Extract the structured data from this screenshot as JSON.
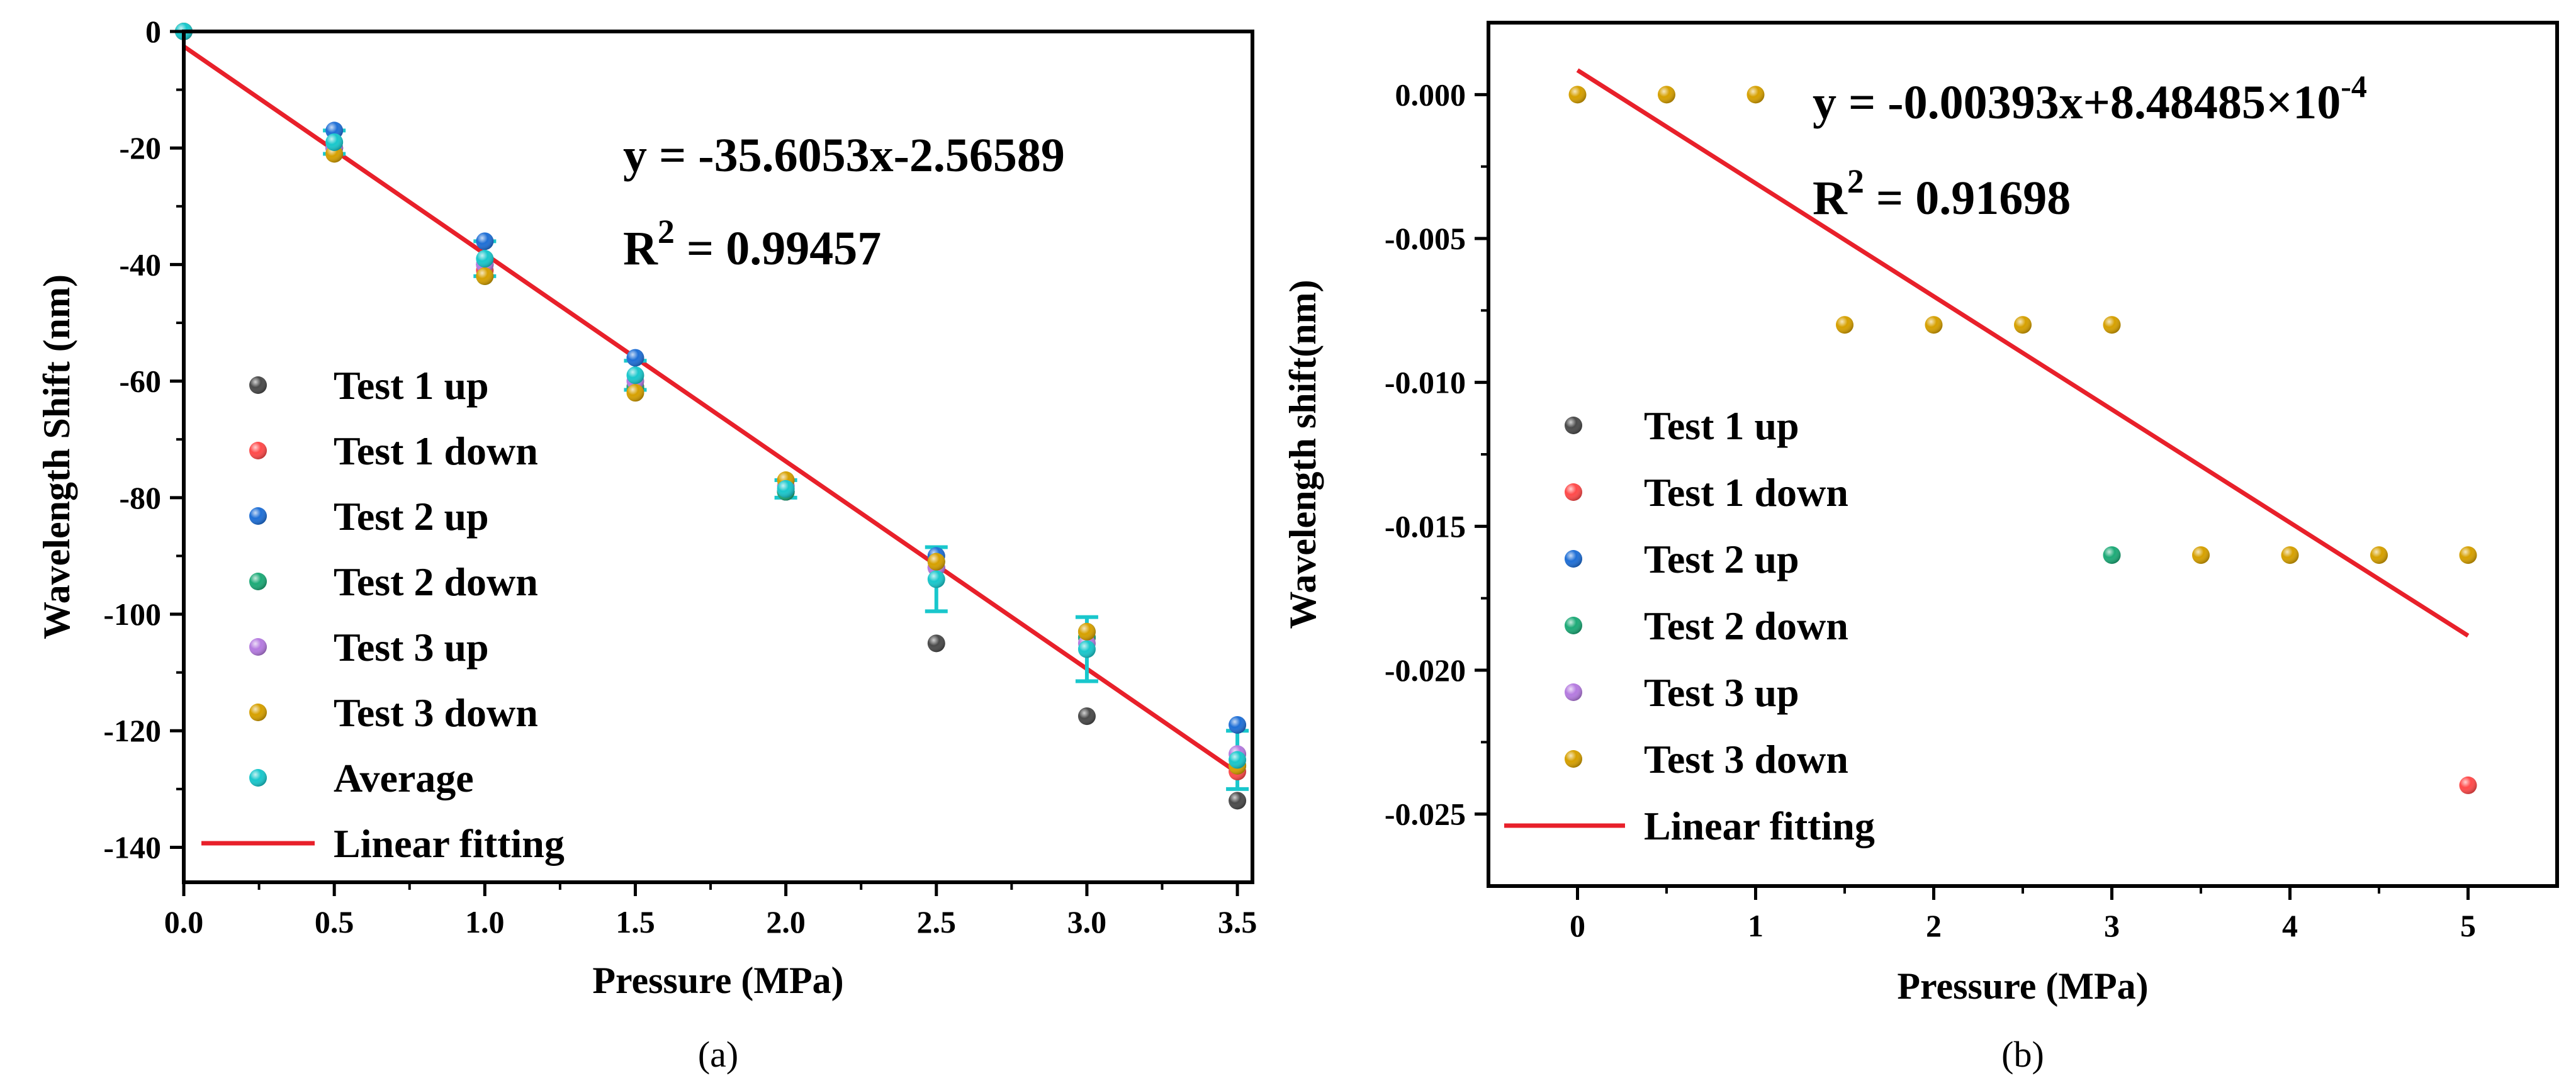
{
  "chart_data": [
    {
      "type": "scatter",
      "panel_label": "(a)",
      "xlabel": "Pressure (MPa)",
      "ylabel": "Wavelength Shift (nm)",
      "xlim": [
        0,
        3.55
      ],
      "ylim": [
        -146,
        0
      ],
      "xticks": [
        0,
        0.5,
        1,
        1.5,
        2,
        2.5,
        3,
        3.5
      ],
      "xtick_labels": [
        "0.0",
        "0.5",
        "1.0",
        "1.5",
        "2.0",
        "2.5",
        "3.0",
        "3.5"
      ],
      "yticks": [
        0,
        -20,
        -40,
        -60,
        -80,
        -100,
        -120,
        -140
      ],
      "ytick_labels": [
        "0",
        "-20",
        "-40",
        "-60",
        "-80",
        "-100",
        "-120",
        "-140"
      ],
      "legend_position": "left",
      "equation": "y = -35.6053x-2.56589",
      "r2_prefix": "R",
      "r2_sup": "2",
      "r2_value": " = 0.99457",
      "fit": {
        "name": "Linear fitting",
        "color": "#e8202a",
        "slope": -35.6053,
        "intercept": -2.56589,
        "x_range": [
          0,
          3.5
        ]
      },
      "series": [
        {
          "name": "Test 1 up",
          "color": "#4a4a4a",
          "x": [
            0,
            0.5,
            1,
            1.5,
            2,
            2.5,
            3,
            3.5
          ],
          "y": [
            0,
            -20,
            -40,
            -61,
            -79,
            -105,
            -117.5,
            -132
          ]
        },
        {
          "name": "Test 1 down",
          "color": "#ff4a4a",
          "x": [
            0,
            0.5,
            1,
            1.5,
            2,
            2.5,
            3,
            3.5
          ],
          "y": [
            0,
            -20,
            -41,
            -61,
            -79,
            -92,
            -104,
            -127
          ]
        },
        {
          "name": "Test 2 up",
          "color": "#1f6fd6",
          "x": [
            0,
            0.5,
            1,
            1.5,
            2,
            2.5,
            3,
            3.5
          ],
          "y": [
            0,
            -17,
            -36,
            -56,
            -79,
            -90,
            -103,
            -119
          ]
        },
        {
          "name": "Test 2 down",
          "color": "#1daa77",
          "x": [
            0,
            0.5,
            1,
            1.5,
            2,
            2.5,
            3,
            3.5
          ],
          "y": [
            0,
            -20,
            -42,
            -61,
            -79,
            -91,
            -104,
            -126
          ]
        },
        {
          "name": "Test 3 up",
          "color": "#b57be0",
          "x": [
            0,
            0.5,
            1,
            1.5,
            2,
            2.5,
            3,
            3.5
          ],
          "y": [
            0,
            -20,
            -40,
            -60,
            -78,
            -92,
            -105,
            -124
          ]
        },
        {
          "name": "Test 3 down",
          "color": "#d6a000",
          "x": [
            0,
            0.5,
            1,
            1.5,
            2,
            2.5,
            3,
            3.5
          ],
          "y": [
            0,
            -21,
            -42,
            -62,
            -77,
            -91,
            -103,
            -126
          ]
        },
        {
          "name": "Average",
          "color": "#19c7cc",
          "x": [
            0,
            0.5,
            1,
            1.5,
            2,
            2.5,
            3,
            3.5
          ],
          "y": [
            0,
            -19,
            -39,
            -59,
            -78.5,
            -94,
            -106,
            -125
          ],
          "err": [
            0,
            2,
            3,
            2.5,
            1.5,
            5.5,
            5.5,
            5
          ]
        }
      ]
    },
    {
      "type": "scatter",
      "panel_label": "(b)",
      "xlabel": "Pressure (MPa)",
      "ylabel": "Wavelength shift(nm)",
      "xlim": [
        -0.5,
        5.5
      ],
      "ylim": [
        -0.0275,
        0.0025
      ],
      "xticks": [
        0,
        1,
        2,
        3,
        4,
        5
      ],
      "xtick_labels": [
        "0",
        "1",
        "2",
        "3",
        "4",
        "5"
      ],
      "yticks": [
        0,
        -0.005,
        -0.01,
        -0.015,
        -0.02,
        -0.025
      ],
      "ytick_labels": [
        "0.000",
        "-0.005",
        "-0.010",
        "-0.015",
        "-0.020",
        "-0.025"
      ],
      "legend_position": "left",
      "equation": "y = -0.00393x+8.48485×10",
      "equation_sup": "-4",
      "r2_prefix": "R",
      "r2_sup": "2",
      "r2_value": " = 0.91698",
      "fit": {
        "name": "Linear fitting",
        "color": "#e8202a",
        "slope": -0.00393,
        "intercept": 0.000848485,
        "x_range": [
          0,
          5
        ]
      },
      "series": [
        {
          "name": "Test 1 up",
          "color": "#4a4a4a",
          "x": [],
          "y": []
        },
        {
          "name": "Test 1 down",
          "color": "#ff4a4a",
          "x": [
            5
          ],
          "y": [
            -0.024
          ]
        },
        {
          "name": "Test 2 up",
          "color": "#1f6fd6",
          "x": [],
          "y": []
        },
        {
          "name": "Test 2 down",
          "color": "#1daa77",
          "x": [
            3
          ],
          "y": [
            -0.016
          ]
        },
        {
          "name": "Test 3 up",
          "color": "#b57be0",
          "x": [],
          "y": []
        },
        {
          "name": "Test 3 down",
          "color": "#d6a000",
          "x": [
            0,
            0.5,
            1,
            1.5,
            2,
            2.5,
            3,
            3.5,
            4,
            4.5,
            5
          ],
          "y": [
            0,
            0,
            0,
            -0.008,
            -0.008,
            -0.008,
            -0.008,
            -0.016,
            -0.016,
            -0.016,
            -0.016
          ]
        }
      ]
    }
  ]
}
